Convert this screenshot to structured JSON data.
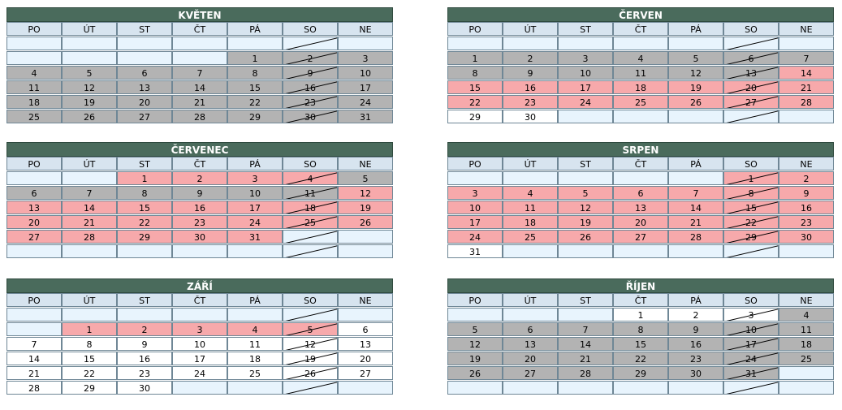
{
  "weekdays": [
    "PO",
    "ÚT",
    "ST",
    "ČT",
    "PÁ",
    "SO",
    "NE"
  ],
  "colors": {
    "header_bg": "#4a6b5c",
    "weekday_bg": "#d7e4ef",
    "empty_bg": "#e8f4fd",
    "gray": "#b3b3b3",
    "pink": "#f7a9ab",
    "white": "#ffffff"
  },
  "months": [
    {
      "name": "KVĚTEN",
      "rows": [
        [
          [
            "",
            "e"
          ],
          [
            "",
            "e"
          ],
          [
            "",
            "e"
          ],
          [
            "",
            "e"
          ],
          [
            "",
            "e"
          ],
          [
            "",
            "e/"
          ],
          [
            "",
            "e"
          ]
        ],
        [
          [
            "",
            "e"
          ],
          [
            "",
            "e"
          ],
          [
            "",
            "e"
          ],
          [
            "",
            "e"
          ],
          [
            "1",
            "g"
          ],
          [
            "2",
            "g/"
          ],
          [
            "3",
            "g"
          ]
        ],
        [
          [
            "4",
            "g"
          ],
          [
            "5",
            "g"
          ],
          [
            "6",
            "g"
          ],
          [
            "7",
            "g"
          ],
          [
            "8",
            "g"
          ],
          [
            "9",
            "g/"
          ],
          [
            "10",
            "g"
          ]
        ],
        [
          [
            "11",
            "g"
          ],
          [
            "12",
            "g"
          ],
          [
            "13",
            "g"
          ],
          [
            "14",
            "g"
          ],
          [
            "15",
            "g"
          ],
          [
            "16",
            "g/"
          ],
          [
            "17",
            "g"
          ]
        ],
        [
          [
            "18",
            "g"
          ],
          [
            "19",
            "g"
          ],
          [
            "20",
            "g"
          ],
          [
            "21",
            "g"
          ],
          [
            "22",
            "g"
          ],
          [
            "23",
            "g/"
          ],
          [
            "24",
            "g"
          ]
        ],
        [
          [
            "25",
            "g"
          ],
          [
            "26",
            "g"
          ],
          [
            "27",
            "g"
          ],
          [
            "28",
            "g"
          ],
          [
            "29",
            "g"
          ],
          [
            "30",
            "g/"
          ],
          [
            "31",
            "g"
          ]
        ]
      ]
    },
    {
      "name": "ČERVEN",
      "rows": [
        [
          [
            "",
            "e"
          ],
          [
            "",
            "e"
          ],
          [
            "",
            "e"
          ],
          [
            "",
            "e"
          ],
          [
            "",
            "e"
          ],
          [
            "",
            "e/"
          ],
          [
            "",
            "e"
          ]
        ],
        [
          [
            "1",
            "g"
          ],
          [
            "2",
            "g"
          ],
          [
            "3",
            "g"
          ],
          [
            "4",
            "g"
          ],
          [
            "5",
            "g"
          ],
          [
            "6",
            "g/"
          ],
          [
            "7",
            "g"
          ]
        ],
        [
          [
            "8",
            "g"
          ],
          [
            "9",
            "g"
          ],
          [
            "10",
            "g"
          ],
          [
            "11",
            "g"
          ],
          [
            "12",
            "g"
          ],
          [
            "13",
            "g/"
          ],
          [
            "14",
            "p"
          ]
        ],
        [
          [
            "15",
            "p"
          ],
          [
            "16",
            "p"
          ],
          [
            "17",
            "p"
          ],
          [
            "18",
            "p"
          ],
          [
            "19",
            "p"
          ],
          [
            "20",
            "p/"
          ],
          [
            "21",
            "p"
          ]
        ],
        [
          [
            "22",
            "p"
          ],
          [
            "23",
            "p"
          ],
          [
            "24",
            "p"
          ],
          [
            "25",
            "p"
          ],
          [
            "26",
            "p"
          ],
          [
            "27",
            "p/"
          ],
          [
            "28",
            "p"
          ]
        ],
        [
          [
            "29",
            "w"
          ],
          [
            "30",
            "w"
          ],
          [
            "",
            "e"
          ],
          [
            "",
            "e"
          ],
          [
            "",
            "e"
          ],
          [
            "",
            "e/"
          ],
          [
            "",
            "e"
          ]
        ]
      ]
    },
    {
      "name": "ČERVENEC",
      "rows": [
        [
          [
            "",
            "e"
          ],
          [
            "",
            "e"
          ],
          [
            "1",
            "p"
          ],
          [
            "2",
            "p"
          ],
          [
            "3",
            "p"
          ],
          [
            "4",
            "p/"
          ],
          [
            "5",
            "g"
          ]
        ],
        [
          [
            "6",
            "g"
          ],
          [
            "7",
            "g"
          ],
          [
            "8",
            "g"
          ],
          [
            "9",
            "g"
          ],
          [
            "10",
            "g"
          ],
          [
            "11",
            "g/"
          ],
          [
            "12",
            "p"
          ]
        ],
        [
          [
            "13",
            "p"
          ],
          [
            "14",
            "p"
          ],
          [
            "15",
            "p"
          ],
          [
            "16",
            "p"
          ],
          [
            "17",
            "p"
          ],
          [
            "18",
            "p/"
          ],
          [
            "19",
            "p"
          ]
        ],
        [
          [
            "20",
            "p"
          ],
          [
            "21",
            "p"
          ],
          [
            "22",
            "p"
          ],
          [
            "23",
            "p"
          ],
          [
            "24",
            "p"
          ],
          [
            "25",
            "p/"
          ],
          [
            "26",
            "p"
          ]
        ],
        [
          [
            "27",
            "p"
          ],
          [
            "28",
            "p"
          ],
          [
            "29",
            "p"
          ],
          [
            "30",
            "p"
          ],
          [
            "31",
            "p"
          ],
          [
            "",
            "e/"
          ],
          [
            "",
            "e"
          ]
        ],
        [
          [
            "",
            "e"
          ],
          [
            "",
            "e"
          ],
          [
            "",
            "e"
          ],
          [
            "",
            "e"
          ],
          [
            "",
            "e"
          ],
          [
            "",
            "e/"
          ],
          [
            "",
            "e"
          ]
        ]
      ]
    },
    {
      "name": "SRPEN",
      "rows": [
        [
          [
            "",
            "e"
          ],
          [
            "",
            "e"
          ],
          [
            "",
            "e"
          ],
          [
            "",
            "e"
          ],
          [
            "",
            "e"
          ],
          [
            "1",
            "p/"
          ],
          [
            "2",
            "p"
          ]
        ],
        [
          [
            "3",
            "p"
          ],
          [
            "4",
            "p"
          ],
          [
            "5",
            "p"
          ],
          [
            "6",
            "p"
          ],
          [
            "7",
            "p"
          ],
          [
            "8",
            "p/"
          ],
          [
            "9",
            "p"
          ]
        ],
        [
          [
            "10",
            "p"
          ],
          [
            "11",
            "p"
          ],
          [
            "12",
            "p"
          ],
          [
            "13",
            "p"
          ],
          [
            "14",
            "p"
          ],
          [
            "15",
            "p/"
          ],
          [
            "16",
            "p"
          ]
        ],
        [
          [
            "17",
            "p"
          ],
          [
            "18",
            "p"
          ],
          [
            "19",
            "p"
          ],
          [
            "20",
            "p"
          ],
          [
            "21",
            "p"
          ],
          [
            "22",
            "p/"
          ],
          [
            "23",
            "p"
          ]
        ],
        [
          [
            "24",
            "p"
          ],
          [
            "25",
            "p"
          ],
          [
            "26",
            "p"
          ],
          [
            "27",
            "p"
          ],
          [
            "28",
            "p"
          ],
          [
            "29",
            "p/"
          ],
          [
            "30",
            "p"
          ]
        ],
        [
          [
            "31",
            "w"
          ],
          [
            "",
            "e"
          ],
          [
            "",
            "e"
          ],
          [
            "",
            "e"
          ],
          [
            "",
            "e"
          ],
          [
            "",
            "e/"
          ],
          [
            "",
            "e"
          ]
        ]
      ]
    },
    {
      "name": "ZÁŘÍ",
      "rows": [
        [
          [
            "",
            "e"
          ],
          [
            "",
            "e"
          ],
          [
            "",
            "e"
          ],
          [
            "",
            "e"
          ],
          [
            "",
            "e"
          ],
          [
            "",
            "e/"
          ],
          [
            "",
            "e"
          ]
        ],
        [
          [
            "",
            "e"
          ],
          [
            "1",
            "p"
          ],
          [
            "2",
            "p"
          ],
          [
            "3",
            "p"
          ],
          [
            "4",
            "p"
          ],
          [
            "5",
            "p/"
          ],
          [
            "6",
            "w"
          ]
        ],
        [
          [
            "7",
            "w"
          ],
          [
            "8",
            "w"
          ],
          [
            "9",
            "w"
          ],
          [
            "10",
            "w"
          ],
          [
            "11",
            "w"
          ],
          [
            "12",
            "w/"
          ],
          [
            "13",
            "w"
          ]
        ],
        [
          [
            "14",
            "w"
          ],
          [
            "15",
            "w"
          ],
          [
            "16",
            "w"
          ],
          [
            "17",
            "w"
          ],
          [
            "18",
            "w"
          ],
          [
            "19",
            "w/"
          ],
          [
            "20",
            "w"
          ]
        ],
        [
          [
            "21",
            "w"
          ],
          [
            "22",
            "w"
          ],
          [
            "23",
            "w"
          ],
          [
            "24",
            "w"
          ],
          [
            "25",
            "w"
          ],
          [
            "26",
            "w/"
          ],
          [
            "27",
            "w"
          ]
        ],
        [
          [
            "28",
            "w"
          ],
          [
            "29",
            "w"
          ],
          [
            "30",
            "w"
          ],
          [
            "",
            "e"
          ],
          [
            "",
            "e"
          ],
          [
            "",
            "e/"
          ],
          [
            "",
            "e"
          ]
        ]
      ]
    },
    {
      "name": "ŘÍJEN",
      "rows": [
        [
          [
            "",
            "e"
          ],
          [
            "",
            "e"
          ],
          [
            "",
            "e"
          ],
          [
            "1",
            "w"
          ],
          [
            "2",
            "w"
          ],
          [
            "3",
            "w/"
          ],
          [
            "4",
            "g"
          ]
        ],
        [
          [
            "5",
            "g"
          ],
          [
            "6",
            "g"
          ],
          [
            "7",
            "g"
          ],
          [
            "8",
            "g"
          ],
          [
            "9",
            "g"
          ],
          [
            "10",
            "g/"
          ],
          [
            "11",
            "g"
          ]
        ],
        [
          [
            "12",
            "g"
          ],
          [
            "13",
            "g"
          ],
          [
            "14",
            "g"
          ],
          [
            "15",
            "g"
          ],
          [
            "16",
            "g"
          ],
          [
            "17",
            "g/"
          ],
          [
            "18",
            "g"
          ]
        ],
        [
          [
            "19",
            "g"
          ],
          [
            "20",
            "g"
          ],
          [
            "21",
            "g"
          ],
          [
            "22",
            "g"
          ],
          [
            "23",
            "g"
          ],
          [
            "24",
            "g/"
          ],
          [
            "25",
            "g"
          ]
        ],
        [
          [
            "26",
            "g"
          ],
          [
            "27",
            "g"
          ],
          [
            "28",
            "g"
          ],
          [
            "29",
            "g"
          ],
          [
            "30",
            "g"
          ],
          [
            "31",
            "g/"
          ],
          [
            "",
            "e"
          ]
        ],
        [
          [
            "",
            "e"
          ],
          [
            "",
            "e"
          ],
          [
            "",
            "e"
          ],
          [
            "",
            "e"
          ],
          [
            "",
            "e"
          ],
          [
            "",
            "e/"
          ],
          [
            "",
            "e"
          ]
        ]
      ]
    }
  ]
}
